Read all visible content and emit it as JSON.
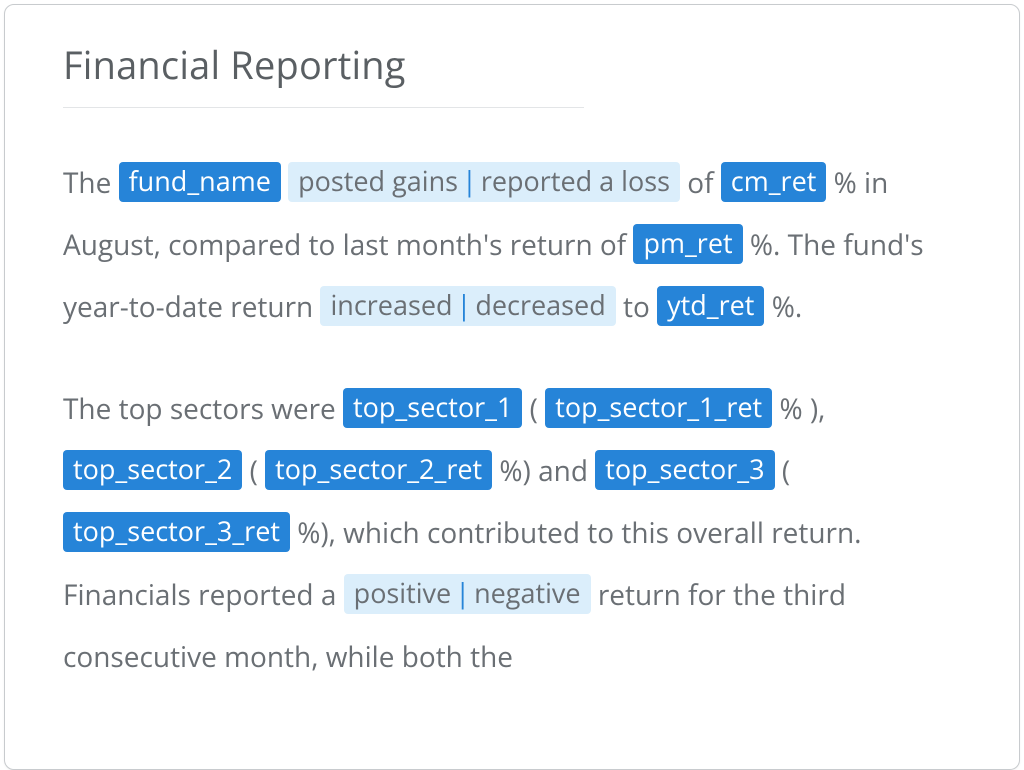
{
  "title": "Financial Reporting",
  "colors": {
    "variable_bg": "#2684d8",
    "variable_text": "#ffffff",
    "conditional_bg": "#dbeefb",
    "conditional_text": "#6a6f74",
    "conditional_separator": "#2684d8",
    "body_text": "#6a6f74",
    "title_text": "#5a5f63",
    "rule": "#e3e5e7",
    "card_border": "#c8cbce",
    "background": "#ffffff"
  },
  "typography": {
    "title_fontsize": 38,
    "body_fontsize": 28,
    "token_fontsize": 27,
    "line_height": 62
  },
  "paragraphs": [
    {
      "segments": [
        {
          "type": "text",
          "value": "The "
        },
        {
          "type": "var",
          "value": "fund_name"
        },
        {
          "type": "text",
          "value": " "
        },
        {
          "type": "cond",
          "options": [
            "posted gains",
            "reported a loss"
          ]
        },
        {
          "type": "text",
          "value": " of "
        },
        {
          "type": "var",
          "value": "cm_ret"
        },
        {
          "type": "text",
          "value": " % in August, compared to last month's return of "
        },
        {
          "type": "var",
          "value": "pm_ret"
        },
        {
          "type": "text",
          "value": " %. The fund's year-to-date return "
        },
        {
          "type": "cond",
          "options": [
            "increased",
            "decreased"
          ]
        },
        {
          "type": "text",
          "value": " to "
        },
        {
          "type": "var",
          "value": "ytd_ret"
        },
        {
          "type": "text",
          "value": " %."
        }
      ]
    },
    {
      "segments": [
        {
          "type": "text",
          "value": "The top sectors were "
        },
        {
          "type": "var",
          "value": "top_sector_1"
        },
        {
          "type": "text",
          "value": " ( "
        },
        {
          "type": "var",
          "value": "top_sector_1_ret"
        },
        {
          "type": "text",
          "value": " % ), "
        },
        {
          "type": "var",
          "value": "top_sector_2"
        },
        {
          "type": "text",
          "value": " ( "
        },
        {
          "type": "var",
          "value": "top_sector_2_ret"
        },
        {
          "type": "text",
          "value": " %) and "
        },
        {
          "type": "var",
          "value": "top_sector_3"
        },
        {
          "type": "text",
          "value": " ( "
        },
        {
          "type": "var",
          "value": "top_sector_3_ret"
        },
        {
          "type": "text",
          "value": " %), which contributed to this overall return. Financials reported a "
        },
        {
          "type": "cond",
          "options": [
            "positive",
            "negative"
          ]
        },
        {
          "type": "text",
          "value": " return for the third consecutive month, while both the"
        }
      ]
    }
  ]
}
